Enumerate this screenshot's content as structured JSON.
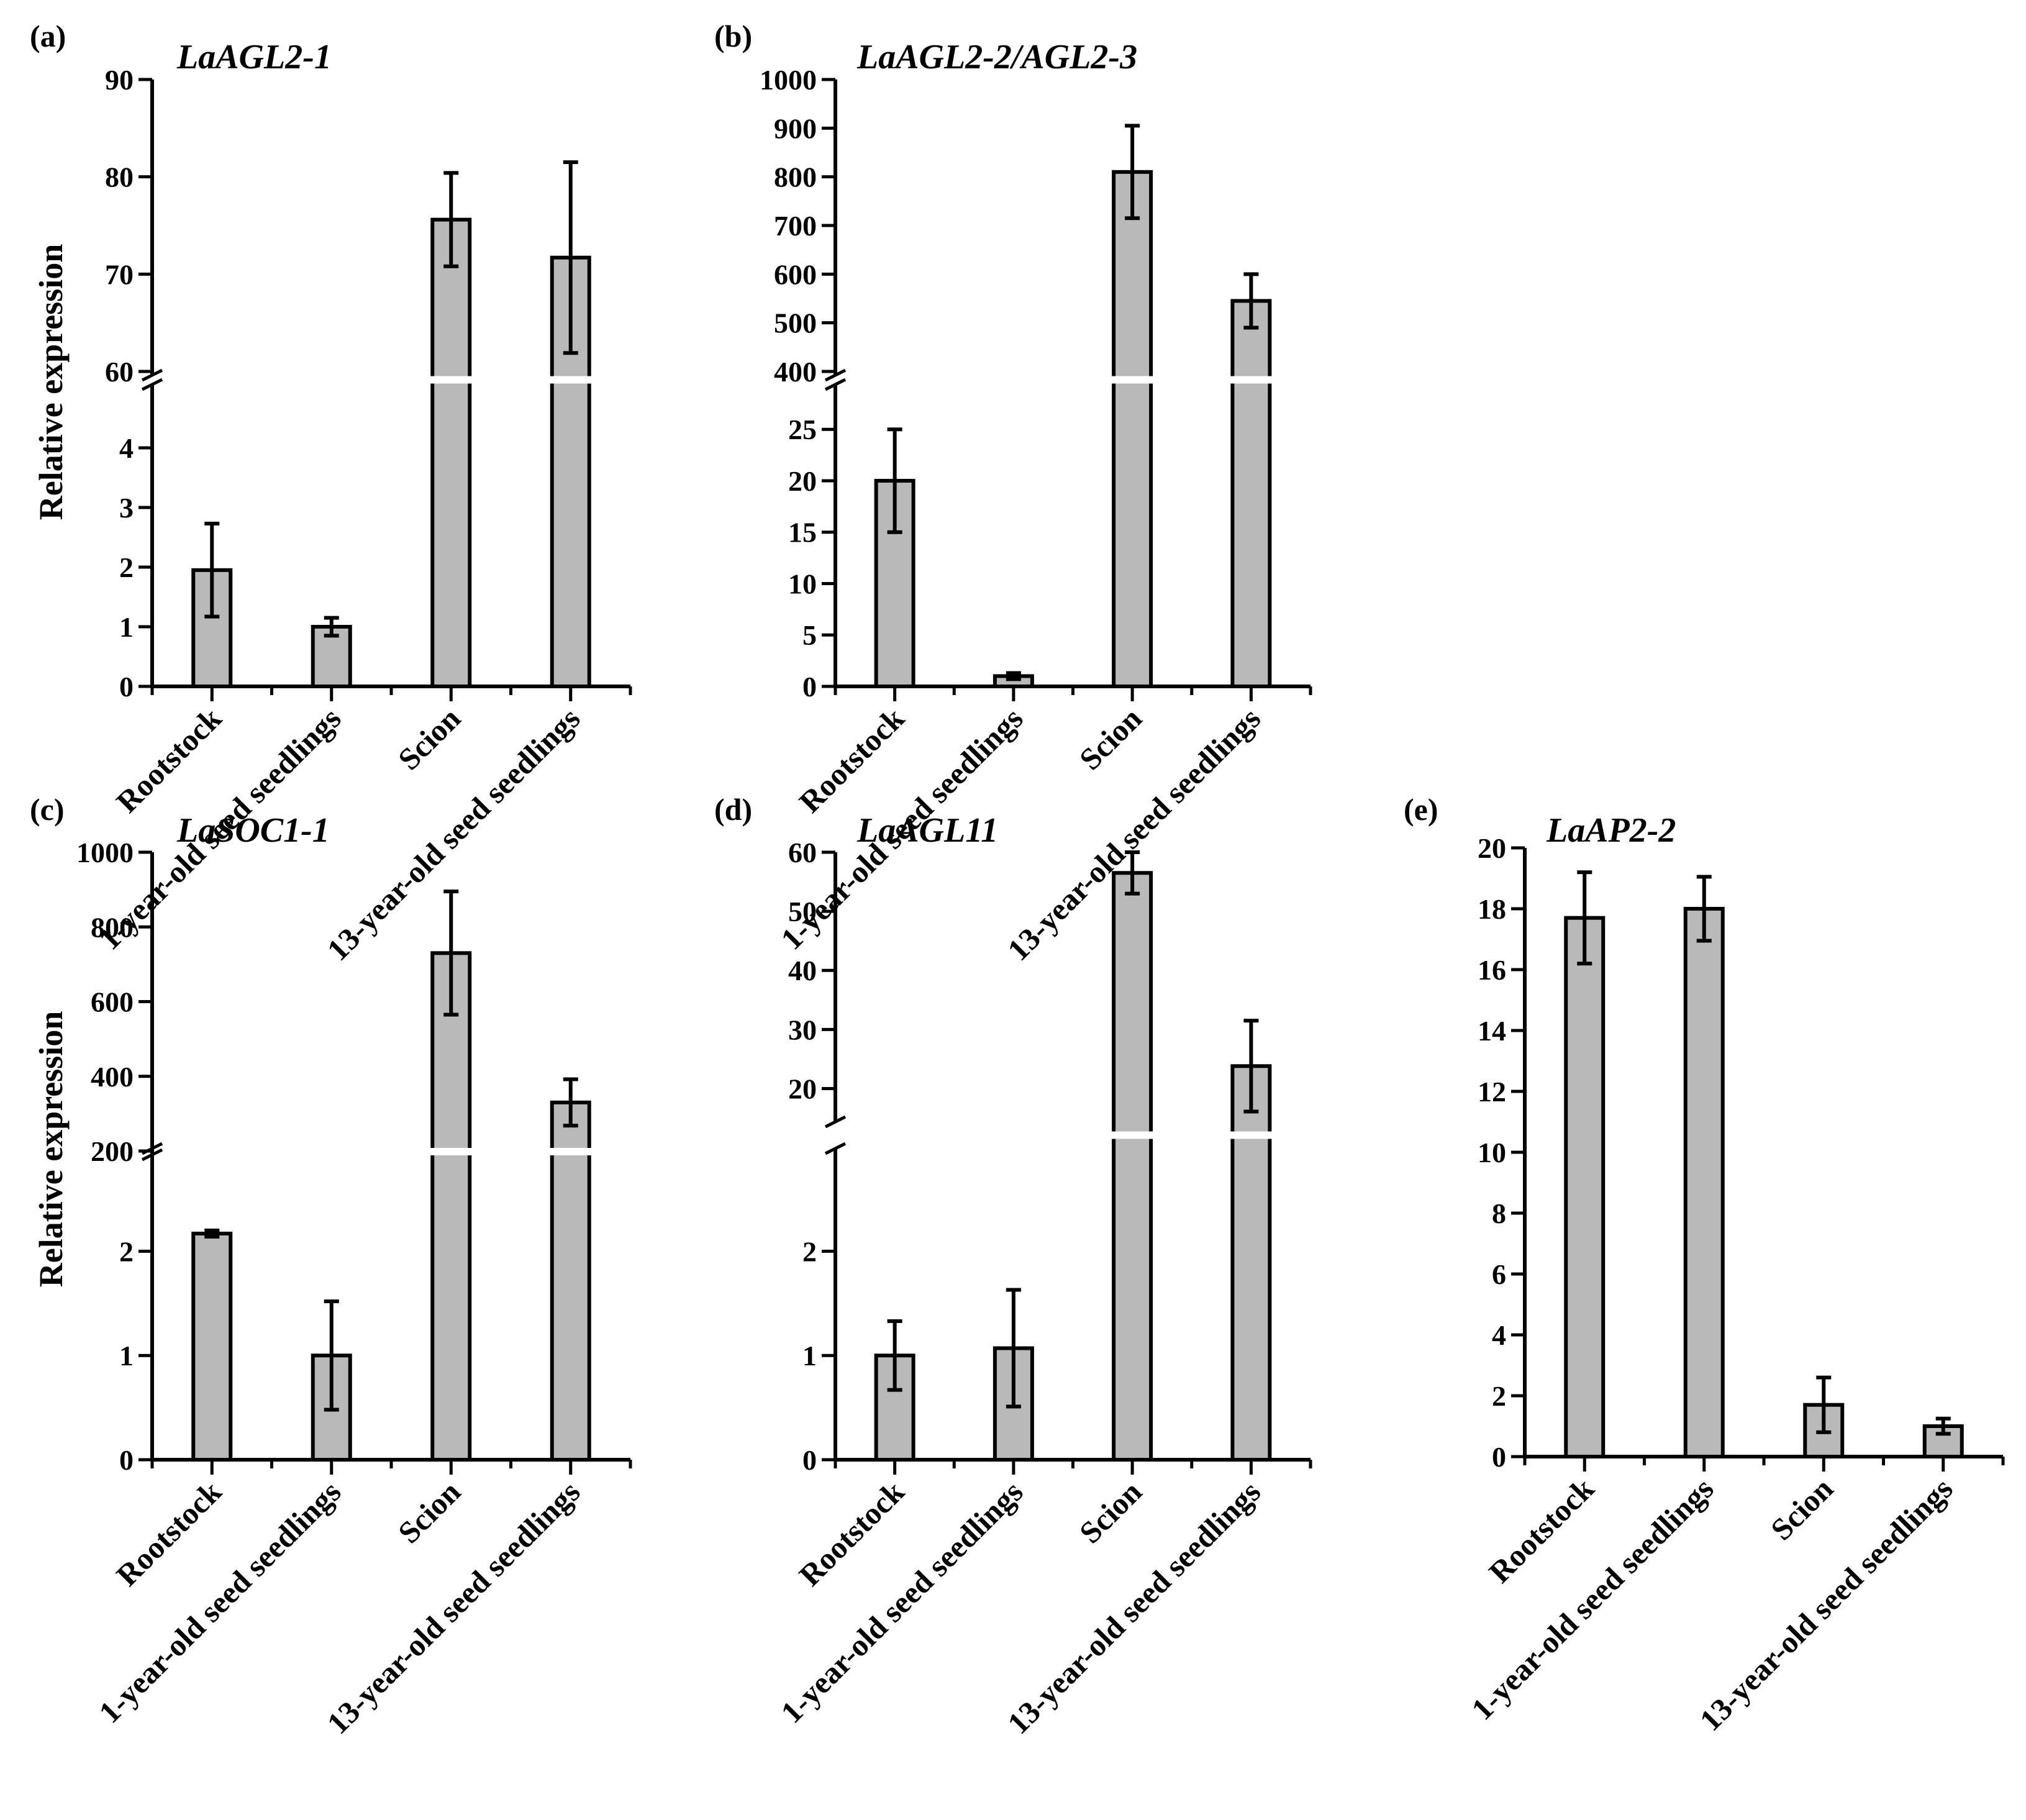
{
  "chart_data": [
    {
      "type": "bar",
      "panel": "(a)",
      "title": "LaAGL2-1",
      "ylabel": "Relative expression",
      "categories": [
        "Rootstock",
        "1-year-old seed seedlings",
        "Scion",
        "13-year-old seed seedlings"
      ],
      "values": [
        1.95,
        1.0,
        75.6,
        71.7
      ],
      "errors": [
        0.78,
        0.15,
        4.8,
        9.8
      ],
      "axis_break": true,
      "ylim_lower": [
        0,
        5
      ],
      "ylim_upper": [
        60,
        90
      ],
      "yticks_lower": [
        0,
        1,
        2,
        3,
        4
      ],
      "yticks_upper": [
        60,
        70,
        80,
        90
      ]
    },
    {
      "type": "bar",
      "panel": "(b)",
      "title": "LaAGL2-2/AGL2-3",
      "ylabel": "",
      "categories": [
        "Rootstock",
        "1-year-old seed seedlings",
        "Scion",
        "13-year-old seed seedlings"
      ],
      "values": [
        20.0,
        1.0,
        810,
        545
      ],
      "errors": [
        5.0,
        0.3,
        95,
        55
      ],
      "axis_break": true,
      "ylim_lower": [
        0,
        29
      ],
      "ylim_upper": [
        400,
        1000
      ],
      "yticks_lower": [
        0,
        5,
        10,
        15,
        20,
        25
      ],
      "yticks_upper": [
        400,
        500,
        600,
        700,
        800,
        900,
        1000
      ]
    },
    {
      "type": "bar",
      "panel": "(c)",
      "title": "LaSOC1-1",
      "ylabel": "Relative expression",
      "categories": [
        "Rootstock",
        "1-year-old seed seedlings",
        "Scion",
        "13-year-old seed seedlings"
      ],
      "values": [
        2.17,
        1.0,
        730,
        330
      ],
      "errors": [
        0.03,
        0.52,
        165,
        62
      ],
      "axis_break": true,
      "ylim_lower": [
        0,
        2.95
      ],
      "ylim_upper": [
        200,
        1000
      ],
      "yticks_lower": [
        0,
        1,
        2
      ],
      "yticks_upper": [
        200,
        400,
        600,
        800,
        1000
      ]
    },
    {
      "type": "bar",
      "panel": "(d)",
      "title": "LaAGL11",
      "ylabel": "",
      "categories": [
        "Rootstock",
        "1-year-old seed seedlings",
        "Scion",
        "13-year-old seed seedlings"
      ],
      "values": [
        1.0,
        1.07,
        56.5,
        23.8
      ],
      "errors": [
        0.33,
        0.56,
        3.5,
        7.7
      ],
      "axis_break": true,
      "ylim_lower": [
        0,
        2.95
      ],
      "ylim_upper": [
        15,
        60
      ],
      "yticks_lower": [
        0,
        1,
        2
      ],
      "yticks_upper": [
        20,
        30,
        40,
        50,
        60
      ]
    },
    {
      "type": "bar",
      "panel": "(e)",
      "title": "LaAP2-2",
      "ylabel": "",
      "categories": [
        "Rootstock",
        "1-year-old seed seedlings",
        "Scion",
        "13-year-old seed seedlings"
      ],
      "values": [
        17.7,
        18.0,
        1.7,
        1.0
      ],
      "errors": [
        1.5,
        1.05,
        0.9,
        0.25
      ],
      "axis_break": false,
      "ylim": [
        0,
        20
      ],
      "yticks": [
        0,
        2,
        4,
        6,
        8,
        10,
        12,
        14,
        16,
        18,
        20
      ]
    }
  ]
}
